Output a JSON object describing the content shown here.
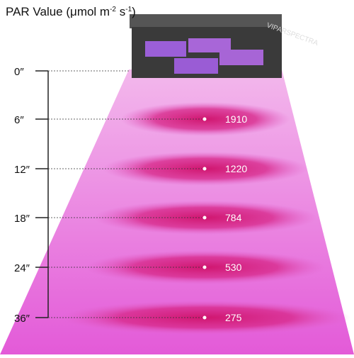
{
  "title": {
    "main": "PAR Value (μmol m",
    "exp1": "-2",
    "unit2": " s",
    "exp2": "-1",
    "close": ")"
  },
  "brand": "VIPARSPECTRA",
  "levels": [
    {
      "distance": "0″"
    },
    {
      "distance": "6″",
      "par": 1910
    },
    {
      "distance": "12″",
      "par": 1220
    },
    {
      "distance": "18″",
      "par": 784
    },
    {
      "distance": "24″",
      "par": 530
    },
    {
      "distance": "36″",
      "par": 275
    }
  ]
}
